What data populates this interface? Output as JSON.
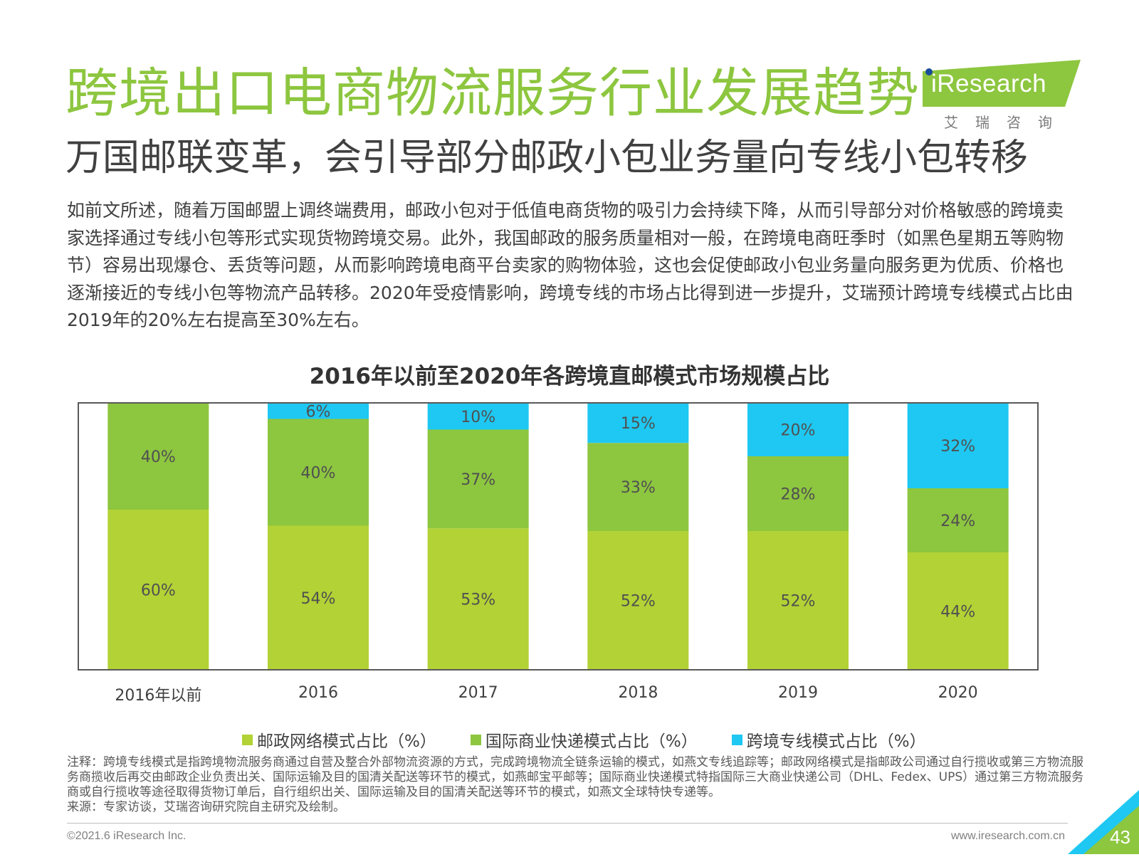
{
  "header": {
    "title": "跨境出口电商物流服务行业发展趋势",
    "subtitle": "万国邮联变革，会引导部分邮政小包业务量向专线小包转移"
  },
  "logo": {
    "brand": "iResearch",
    "sub": "艾瑞咨询"
  },
  "body_text": "如前文所述，随着万国邮盟上调终端费用，邮政小包对于低值电商货物的吸引力会持续下降，从而引导部分对价格敏感的跨境卖家选择通过专线小包等形式实现货物跨境交易。此外，我国邮政的服务质量相对一般，在跨境电商旺季时（如黑色星期五等购物节）容易出现爆仓、丢货等问题，从而影响跨境电商平台卖家的购物体验，这也会促使邮政小包业务量向服务更为优质、价格也逐渐接近的专线小包等物流产品转移。2020年受疫情影响，跨境专线的市场占比得到进一步提升，艾瑞预计跨境专线模式占比由2019年的20%左右提高至30%左右。",
  "chart_data": {
    "type": "bar",
    "stacked": true,
    "title": "2016年以前至2020年各跨境直邮模式市场规模占比",
    "categories": [
      "2016年以前",
      "2016",
      "2017",
      "2018",
      "2019",
      "2020"
    ],
    "series": [
      {
        "name": "邮政网络模式占比（%）",
        "values": [
          60,
          54,
          53,
          52,
          52,
          44
        ],
        "labels": [
          "60%",
          "54%",
          "53%",
          "52%",
          "52%",
          "44%"
        ],
        "color": "#b2d235"
      },
      {
        "name": "国际商业快递模式占比（%）",
        "values": [
          40,
          40,
          37,
          33,
          28,
          24
        ],
        "labels": [
          "40%",
          "40%",
          "37%",
          "33%",
          "28%",
          "24%"
        ],
        "color": "#8dc63f"
      },
      {
        "name": "跨境专线模式占比（%）",
        "values": [
          0,
          6,
          10,
          15,
          20,
          32
        ],
        "labels": [
          "",
          "6%",
          "10%",
          "15%",
          "20%",
          "32%"
        ],
        "color": "#1ec8f2"
      }
    ],
    "ylim": [
      0,
      100
    ],
    "legend_position": "bottom",
    "grid": false
  },
  "note": {
    "text": "注释：跨境专线模式是指跨境物流服务商通过自营及整合外部物流资源的方式，完成跨境物流全链条运输的模式，如燕文专线追踪等；邮政网络模式是指邮政公司通过自行揽收或第三方物流服务商揽收后再交由邮政企业负责出关、国际运输及目的国清关配送等环节的模式，如燕邮宝平邮等；国际商业快递模式特指国际三大商业快递公司（DHL、Fedex、UPS）通过第三方物流服务商或自行揽收等途径取得货物订单后，自行组织出关、国际运输及目的国清关配送等环节的模式，如燕文全球特快专递等。",
    "source": "来源：专家访谈，艾瑞咨询研究院自主研究及绘制。"
  },
  "footer": {
    "copyright": "©2021.6 iResearch Inc.",
    "website": "www.iresearch.com.cn",
    "page_number": "43"
  }
}
